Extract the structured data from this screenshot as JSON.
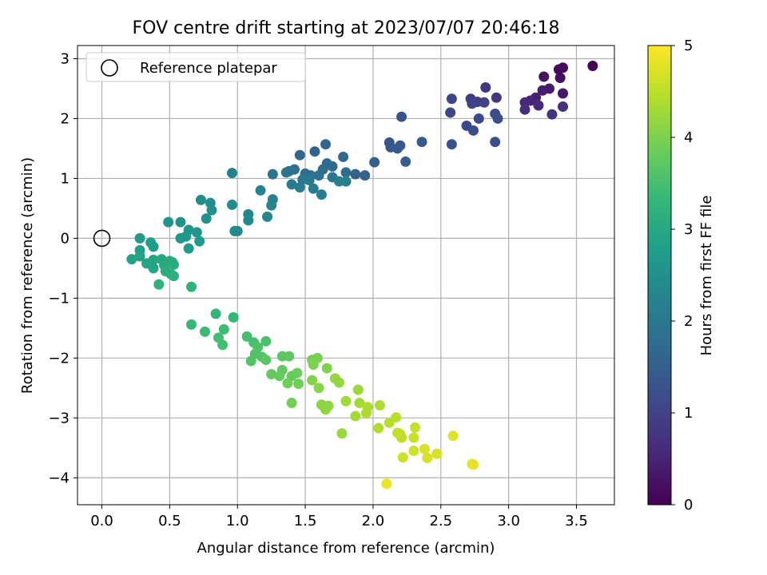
{
  "chart_data": {
    "type": "scatter",
    "title": "FOV centre drift starting at 2023/07/07 20:46:18",
    "xlabel": "Angular distance from reference (arcmin)",
    "ylabel": "Rotation from reference (arcmin)",
    "xlim": [
      -0.18,
      3.78
    ],
    "ylim": [
      -4.45,
      3.22
    ],
    "xticks": [
      "0.0",
      "0.5",
      "1.0",
      "1.5",
      "2.0",
      "2.5",
      "3.0",
      "3.5"
    ],
    "yticks": [
      "−4",
      "−3",
      "−2",
      "−1",
      "0",
      "1",
      "2",
      "3"
    ],
    "grid": true,
    "legend": {
      "placement": "top-left",
      "entries": [
        "Reference platepar"
      ]
    },
    "reference_point": {
      "x": 0.0,
      "y": 0.0,
      "marker": "open-circle"
    },
    "colorbar": {
      "label": "Hours from first FF file",
      "range": [
        0,
        5
      ],
      "ticks": [
        "0",
        "1",
        "2",
        "3",
        "4",
        "5"
      ],
      "colormap": [
        "#440154",
        "#482878",
        "#3e4989",
        "#31688e",
        "#26828e",
        "#1f9e89",
        "#35b779",
        "#6ece58",
        "#b5de2b",
        "#fde725"
      ]
    },
    "points": [
      [
        3.62,
        2.88,
        0.05
      ],
      [
        3.4,
        2.85,
        0.1
      ],
      [
        3.37,
        2.82,
        0.15
      ],
      [
        3.38,
        2.68,
        0.2
      ],
      [
        3.26,
        2.7,
        0.25
      ],
      [
        3.4,
        2.42,
        0.3
      ],
      [
        3.3,
        2.5,
        0.35
      ],
      [
        3.25,
        2.47,
        0.4
      ],
      [
        3.2,
        2.35,
        0.45
      ],
      [
        3.16,
        2.3,
        0.5
      ],
      [
        3.12,
        2.27,
        0.55
      ],
      [
        3.22,
        2.22,
        0.6
      ],
      [
        3.12,
        2.15,
        0.65
      ],
      [
        3.4,
        2.2,
        0.7
      ],
      [
        3.32,
        2.07,
        0.75
      ],
      [
        2.83,
        2.52,
        0.8
      ],
      [
        2.91,
        2.35,
        0.85
      ],
      [
        2.72,
        2.33,
        0.9
      ],
      [
        2.77,
        2.28,
        0.95
      ],
      [
        2.73,
        2.25,
        1.0
      ],
      [
        2.82,
        2.27,
        1.02
      ],
      [
        2.58,
        2.33,
        1.05
      ],
      [
        2.57,
        2.1,
        1.08
      ],
      [
        2.69,
        1.88,
        1.1
      ],
      [
        2.78,
        2.0,
        1.12
      ],
      [
        2.9,
        2.08,
        1.15
      ],
      [
        2.92,
        2.0,
        1.18
      ],
      [
        2.74,
        1.8,
        1.2
      ],
      [
        2.9,
        1.61,
        1.22
      ],
      [
        2.58,
        1.57,
        1.25
      ],
      [
        2.21,
        2.03,
        1.3
      ],
      [
        2.12,
        1.6,
        1.35
      ],
      [
        2.13,
        1.52,
        1.38
      ],
      [
        2.2,
        1.55,
        1.4
      ],
      [
        2.18,
        1.5,
        1.42
      ],
      [
        2.36,
        1.61,
        1.45
      ],
      [
        2.24,
        1.28,
        1.48
      ],
      [
        2.01,
        1.27,
        1.52
      ],
      [
        1.94,
        1.05,
        1.55
      ],
      [
        1.87,
        1.07,
        1.58
      ],
      [
        1.65,
        1.57,
        1.6
      ],
      [
        1.57,
        1.45,
        1.62
      ],
      [
        1.46,
        1.39,
        1.65
      ],
      [
        1.78,
        1.36,
        1.68
      ],
      [
        1.66,
        1.25,
        1.7
      ],
      [
        1.7,
        1.2,
        1.72
      ],
      [
        1.63,
        1.15,
        1.75
      ],
      [
        1.8,
        1.1,
        1.78
      ],
      [
        1.5,
        1.08,
        1.8
      ],
      [
        1.54,
        1.05,
        1.82
      ],
      [
        1.6,
        1.05,
        1.85
      ],
      [
        1.42,
        1.15,
        1.88
      ],
      [
        1.38,
        1.12,
        1.9
      ],
      [
        1.36,
        1.1,
        1.92
      ],
      [
        1.26,
        1.07,
        1.95
      ],
      [
        1.7,
        1.02,
        1.97
      ],
      [
        1.48,
        0.98,
        2.0
      ],
      [
        1.53,
        0.97,
        2.02
      ],
      [
        1.4,
        0.9,
        2.05
      ],
      [
        1.46,
        0.85,
        2.08
      ],
      [
        1.56,
        0.83,
        2.1
      ],
      [
        1.62,
        0.73,
        2.12
      ],
      [
        1.75,
        0.95,
        2.15
      ],
      [
        1.8,
        0.95,
        2.18
      ],
      [
        0.96,
        1.09,
        2.2
      ],
      [
        1.17,
        0.8,
        2.22
      ],
      [
        1.26,
        0.65,
        2.25
      ],
      [
        1.25,
        0.55,
        2.28
      ],
      [
        1.22,
        0.36,
        2.3
      ],
      [
        1.08,
        0.4,
        2.32
      ],
      [
        1.08,
        0.3,
        2.35
      ],
      [
        1.0,
        0.12,
        2.38
      ],
      [
        0.98,
        0.12,
        2.4
      ],
      [
        0.96,
        0.56,
        2.42
      ],
      [
        0.73,
        0.64,
        2.45
      ],
      [
        0.8,
        0.59,
        2.48
      ],
      [
        0.81,
        0.47,
        2.5
      ],
      [
        0.77,
        0.33,
        2.52
      ],
      [
        0.58,
        0.27,
        2.55
      ],
      [
        0.49,
        0.27,
        2.58
      ],
      [
        0.7,
        0.1,
        2.6
      ],
      [
        0.64,
        0.14,
        2.62
      ],
      [
        0.58,
        0.0,
        2.65
      ],
      [
        0.62,
        0.03,
        2.68
      ],
      [
        0.72,
        -0.05,
        2.7
      ],
      [
        0.64,
        -0.17,
        2.72
      ],
      [
        0.28,
        0.0,
        2.75
      ],
      [
        0.36,
        -0.07,
        2.78
      ],
      [
        0.38,
        -0.14,
        2.8
      ],
      [
        0.28,
        -0.2,
        2.82
      ],
      [
        0.22,
        -0.35,
        2.85
      ],
      [
        0.28,
        -0.3,
        2.88
      ],
      [
        0.33,
        -0.42,
        2.9
      ],
      [
        0.38,
        -0.5,
        2.92
      ],
      [
        0.38,
        -0.36,
        2.95
      ],
      [
        0.44,
        -0.35,
        2.98
      ],
      [
        0.46,
        -0.45,
        3.0
      ],
      [
        0.52,
        -0.4,
        3.02
      ],
      [
        0.5,
        -0.38,
        3.05
      ],
      [
        0.53,
        -0.44,
        3.08
      ],
      [
        0.51,
        -0.6,
        3.1
      ],
      [
        0.47,
        -0.55,
        3.12
      ],
      [
        0.53,
        -0.63,
        3.15
      ],
      [
        0.42,
        -0.77,
        3.18
      ],
      [
        0.66,
        -0.81,
        3.2
      ],
      [
        0.84,
        -1.26,
        3.3
      ],
      [
        0.97,
        -1.32,
        3.33
      ],
      [
        0.66,
        -1.44,
        3.36
      ],
      [
        0.76,
        -1.56,
        3.4
      ],
      [
        0.9,
        -1.52,
        3.42
      ],
      [
        0.86,
        -1.66,
        3.45
      ],
      [
        0.89,
        -1.78,
        3.48
      ],
      [
        1.07,
        -1.64,
        3.5
      ],
      [
        1.12,
        -1.74,
        3.52
      ],
      [
        1.21,
        -1.72,
        3.55
      ],
      [
        1.15,
        -1.82,
        3.58
      ],
      [
        1.13,
        -1.93,
        3.6
      ],
      [
        1.18,
        -1.98,
        3.62
      ],
      [
        1.1,
        -2.05,
        3.65
      ],
      [
        1.21,
        -2.03,
        3.68
      ],
      [
        1.33,
        -1.97,
        3.7
      ],
      [
        1.38,
        -1.97,
        3.72
      ],
      [
        1.33,
        -2.2,
        3.75
      ],
      [
        1.25,
        -2.27,
        3.78
      ],
      [
        1.31,
        -2.3,
        3.8
      ],
      [
        1.4,
        -2.3,
        3.82
      ],
      [
        1.44,
        -2.25,
        3.85
      ],
      [
        1.37,
        -2.42,
        3.88
      ],
      [
        1.45,
        -2.43,
        3.9
      ],
      [
        1.4,
        -2.75,
        3.92
      ],
      [
        1.55,
        -2.03,
        3.95
      ],
      [
        1.59,
        -2.0,
        3.97
      ],
      [
        1.56,
        -2.11,
        4.0
      ],
      [
        1.66,
        -2.17,
        4.02
      ],
      [
        1.55,
        -2.37,
        4.05
      ],
      [
        1.6,
        -2.5,
        4.08
      ],
      [
        1.62,
        -2.78,
        4.1
      ],
      [
        1.67,
        -2.8,
        4.12
      ],
      [
        1.65,
        -2.86,
        4.15
      ],
      [
        1.72,
        -2.34,
        4.18
      ],
      [
        1.75,
        -2.41,
        4.2
      ],
      [
        1.77,
        -3.26,
        4.22
      ],
      [
        1.89,
        -2.53,
        4.25
      ],
      [
        1.8,
        -2.72,
        4.28
      ],
      [
        1.9,
        -2.75,
        4.3
      ],
      [
        1.87,
        -2.97,
        4.32
      ],
      [
        1.95,
        -2.92,
        4.35
      ],
      [
        1.96,
        -2.82,
        4.38
      ],
      [
        2.05,
        -2.79,
        4.4
      ],
      [
        2.04,
        -3.17,
        4.42
      ],
      [
        2.12,
        -3.08,
        4.45
      ],
      [
        2.17,
        -2.99,
        4.48
      ],
      [
        2.2,
        -3.27,
        4.5
      ],
      [
        2.21,
        -3.33,
        4.52
      ],
      [
        2.18,
        -3.25,
        4.55
      ],
      [
        2.31,
        -3.16,
        4.58
      ],
      [
        2.3,
        -3.33,
        4.6
      ],
      [
        2.22,
        -3.66,
        4.62
      ],
      [
        2.3,
        -3.55,
        4.65
      ],
      [
        2.38,
        -3.52,
        4.68
      ],
      [
        2.4,
        -3.67,
        4.7
      ],
      [
        2.47,
        -3.6,
        4.72
      ],
      [
        2.59,
        -3.3,
        4.75
      ],
      [
        2.74,
        -3.78,
        4.8
      ],
      [
        2.73,
        -3.77,
        4.82
      ],
      [
        2.1,
        -4.1,
        4.85
      ]
    ]
  }
}
